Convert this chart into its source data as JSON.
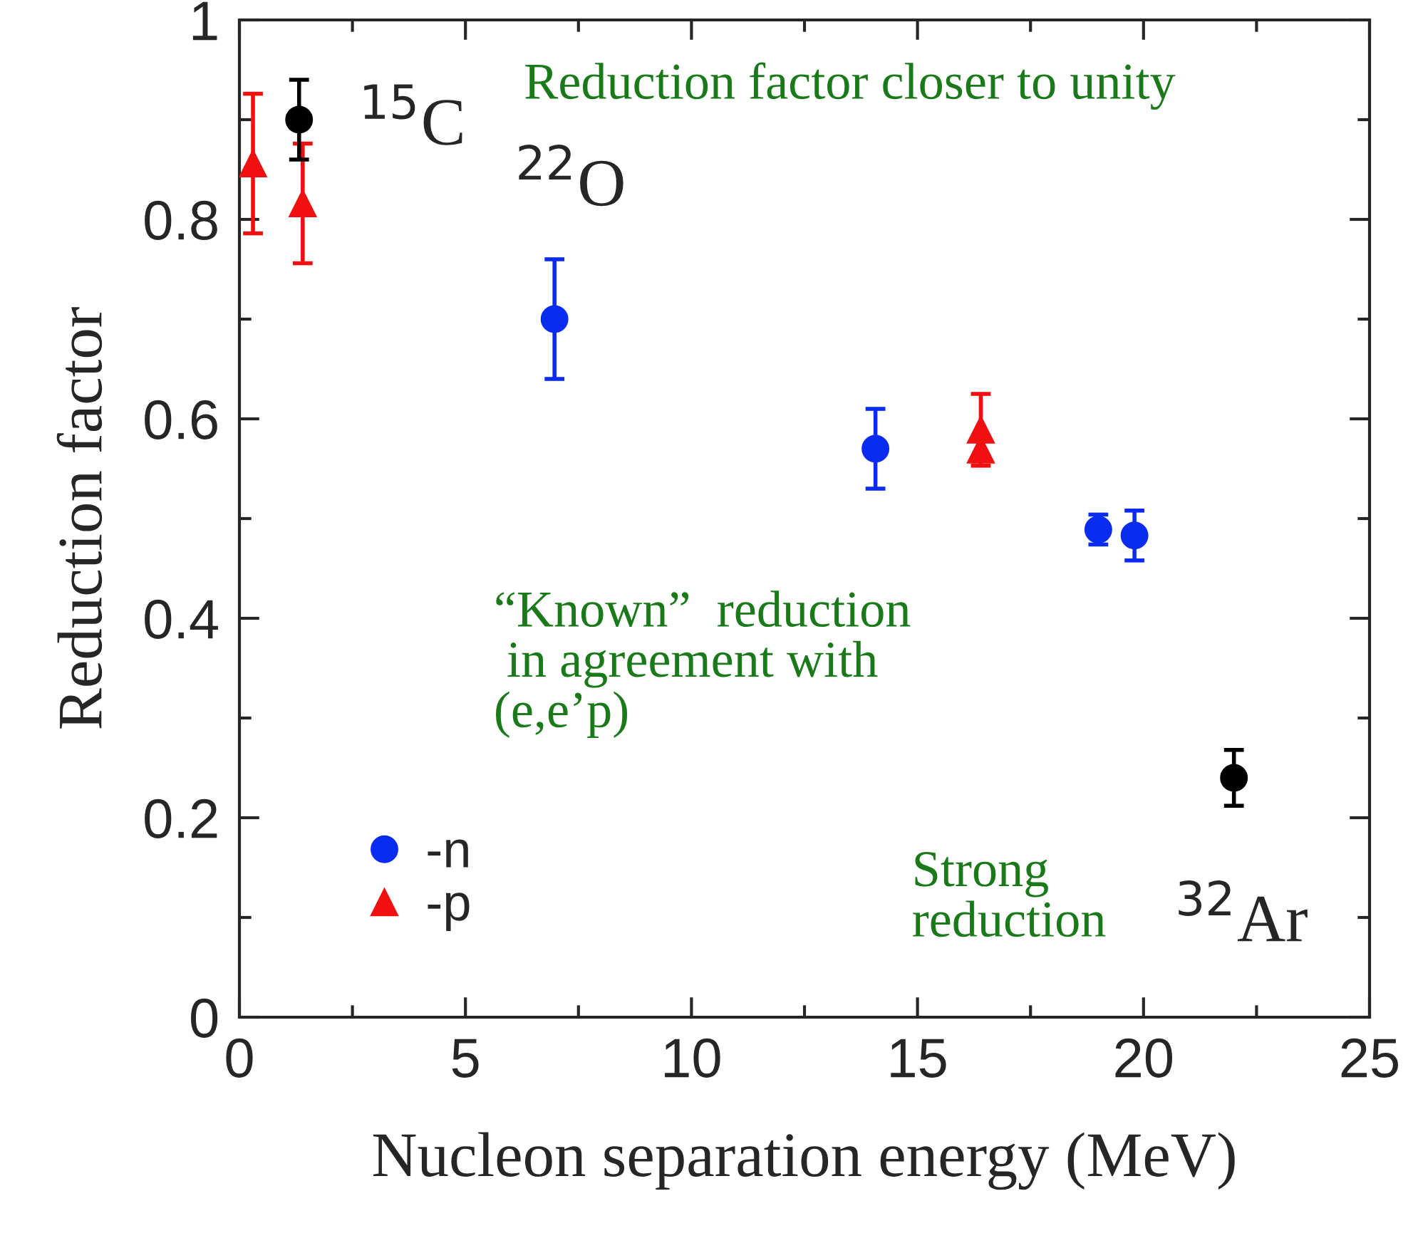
{
  "chart_data": {
    "type": "scatter",
    "xlabel": "Nucleon separation energy (MeV)",
    "ylabel": "Reduction factor",
    "xlim": [
      0,
      25
    ],
    "xticks": [
      0,
      5,
      10,
      15,
      20,
      25
    ],
    "ylim": [
      0,
      1
    ],
    "yticks": [
      0,
      {
        "value": 0.2,
        "label": "0.2"
      },
      {
        "value": 0.4,
        "label": "0.4"
      },
      {
        "value": 0.6,
        "label": "0.6"
      },
      {
        "value": 0.8,
        "label": "0.8"
      },
      1
    ],
    "grid": false,
    "legend": "bottom left",
    "series": [
      {
        "name": "-n",
        "color": "#0a2cf0",
        "marker": "circle",
        "x": [
          6.97,
          14.07,
          19.0,
          19.8
        ],
        "values": [
          0.7,
          0.57,
          0.489,
          0.483
        ],
        "errors": [
          0.06,
          0.04,
          0.015,
          0.025
        ]
      },
      {
        "name": "-p",
        "color": "#f01010",
        "marker": "triangle",
        "x": [
          0.3,
          1.4,
          16.4,
          16.4
        ],
        "values": [
          0.856,
          0.816,
          0.589,
          0.569
        ],
        "errors": [
          0.07,
          0.06,
          0.036,
          null
        ]
      },
      {
        "color": "#000000",
        "marker": "circle",
        "x": [
          1.32,
          22.0
        ],
        "values": [
          0.9,
          0.24
        ],
        "errors": [
          0.04,
          0.028
        ]
      }
    ],
    "annotations": [
      {
        "text": "$^{15}$C",
        "x": 1.32,
        "y": 0.9
      },
      {
        "text": "$^{22}$O",
        "x": 6.97,
        "y": 0.7
      },
      {
        "text": "$^{32}$Ar",
        "x": 22.0,
        "y": 0.24
      },
      "Reduction factor closer to unity",
      "“Known”  reduction\n in agreement with\n(e,e’p)",
      "Strong\nreduction"
    ]
  }
}
